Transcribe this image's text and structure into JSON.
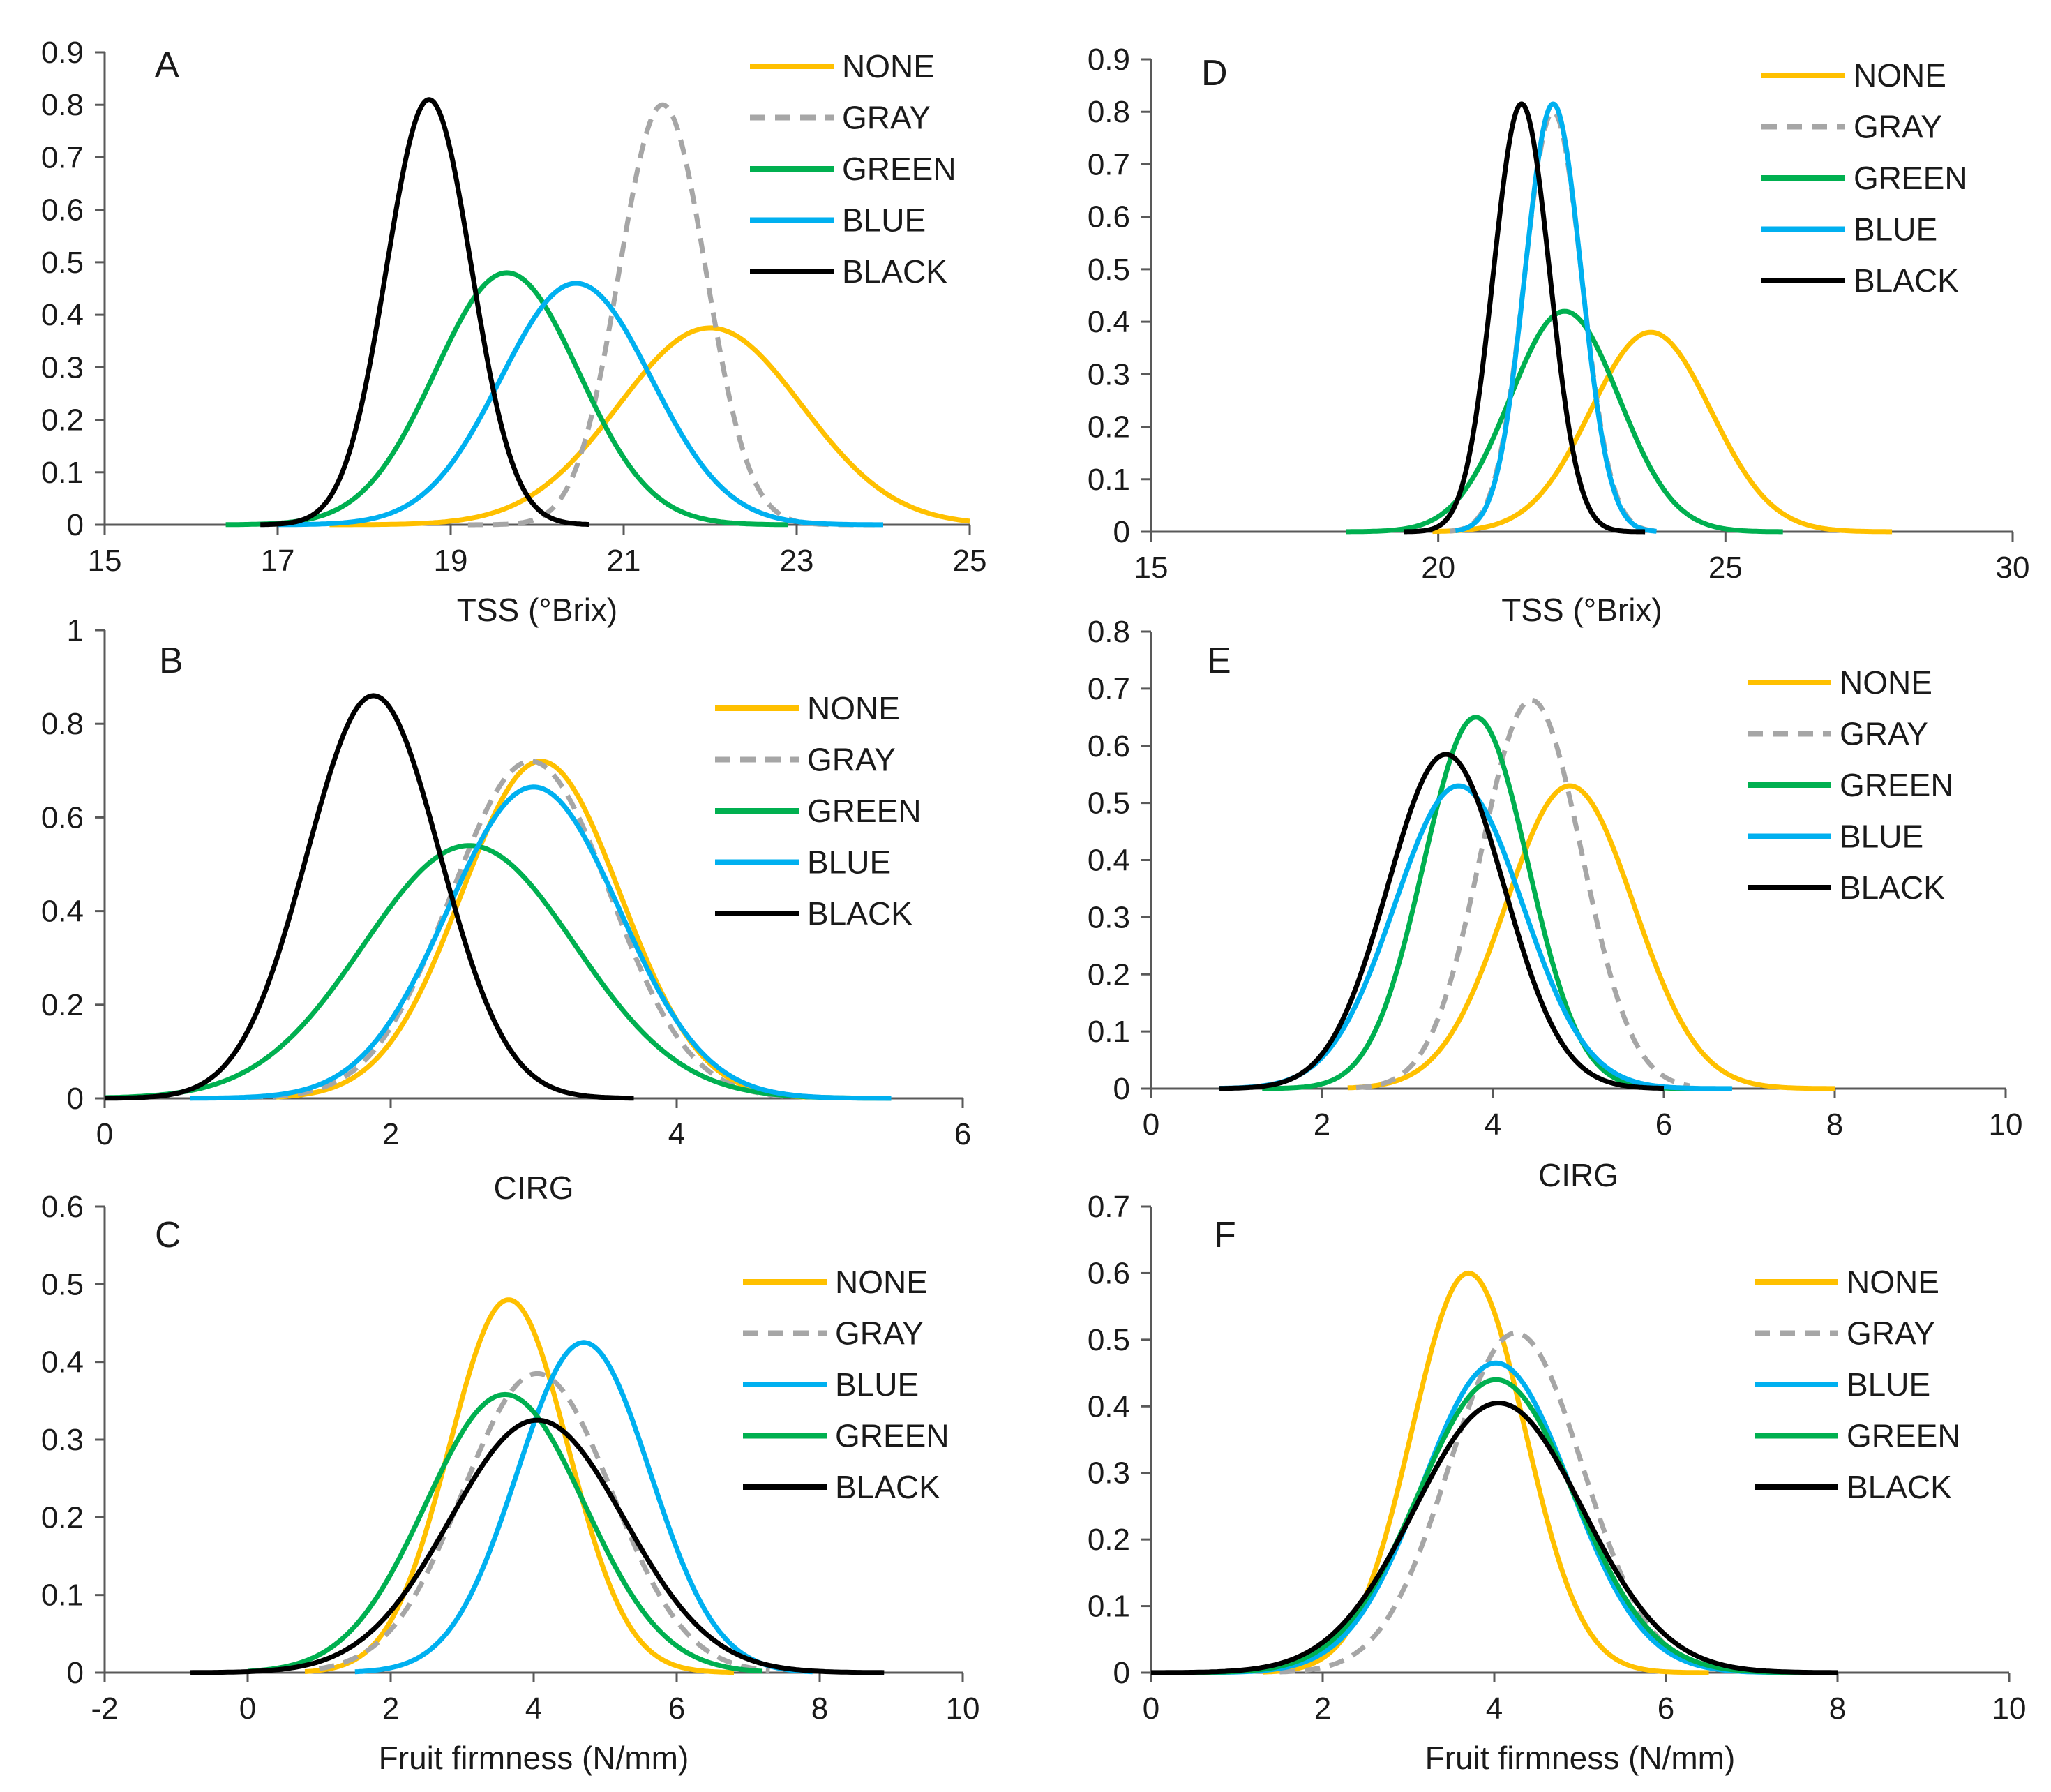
{
  "colors": {
    "NONE": "#FFC000",
    "GRAY": "#A6A6A6",
    "GREEN": "#00B050",
    "BLUE": "#00B0F0",
    "BLACK": "#000000"
  },
  "chart_data": [
    {
      "id": "A",
      "type": "line",
      "subtype": "normal-distribution",
      "title": "A",
      "xlabel": "TSS (°Brix)",
      "ylabel": "",
      "xlim": [
        15,
        25
      ],
      "ylim": [
        0,
        0.9
      ],
      "xticks": [
        15,
        17,
        19,
        21,
        23,
        25
      ],
      "yticks": [
        0,
        0.1,
        0.2,
        0.3,
        0.4,
        0.5,
        0.6,
        0.7,
        0.8,
        0.9
      ],
      "ytick_labels": [
        "0",
        "0.1",
        "0.2",
        "0.3",
        "0.4",
        "0.5",
        "0.6",
        "0.7",
        "0.8",
        "0.9"
      ],
      "legend_position": "top-right",
      "series": [
        {
          "name": "NONE",
          "mean": 22.0,
          "sd": 1.06,
          "peak": 0.375,
          "x_range": [
            17.6,
            25.0
          ],
          "dashed": false
        },
        {
          "name": "GRAY",
          "mean": 21.45,
          "sd": 0.5,
          "peak": 0.8,
          "x_range": [
            19.2,
            23.9
          ],
          "dashed": true
        },
        {
          "name": "GREEN",
          "mean": 19.65,
          "sd": 0.83,
          "peak": 0.48,
          "x_range": [
            16.4,
            22.9
          ],
          "dashed": false
        },
        {
          "name": "BLUE",
          "mean": 20.45,
          "sd": 0.87,
          "peak": 0.46,
          "x_range": [
            17.0,
            24.0
          ],
          "dashed": false
        },
        {
          "name": "BLACK",
          "mean": 18.75,
          "sd": 0.49,
          "peak": 0.81,
          "x_range": [
            16.8,
            20.6
          ],
          "dashed": false
        }
      ]
    },
    {
      "id": "B",
      "type": "line",
      "subtype": "normal-distribution",
      "title": "B",
      "xlabel": "CIRG",
      "ylabel": "",
      "xlim": [
        0,
        6
      ],
      "ylim": [
        0,
        1
      ],
      "xticks": [
        0,
        2,
        4,
        6
      ],
      "yticks": [
        0,
        0.2,
        0.4,
        0.6,
        0.8,
        1
      ],
      "ytick_labels": [
        "0",
        "0.2",
        "0.4",
        "0.6",
        "0.8",
        "1"
      ],
      "legend_position": "top-right",
      "series": [
        {
          "name": "NONE",
          "mean": 3.05,
          "sd": 0.555,
          "peak": 0.72,
          "x_range": [
            1.2,
            4.9
          ],
          "dashed": false
        },
        {
          "name": "GRAY",
          "mean": 2.98,
          "sd": 0.555,
          "peak": 0.72,
          "x_range": [
            1.0,
            4.8
          ],
          "dashed": true
        },
        {
          "name": "GREEN",
          "mean": 2.55,
          "sd": 0.74,
          "peak": 0.54,
          "x_range": [
            0.0,
            5.5
          ],
          "dashed": false
        },
        {
          "name": "BLUE",
          "mean": 3.0,
          "sd": 0.6,
          "peak": 0.665,
          "x_range": [
            0.6,
            5.5
          ],
          "dashed": false
        },
        {
          "name": "BLACK",
          "mean": 1.88,
          "sd": 0.465,
          "peak": 0.86,
          "x_range": [
            0.0,
            3.7
          ],
          "dashed": false
        }
      ]
    },
    {
      "id": "C",
      "type": "line",
      "subtype": "normal-distribution",
      "title": "C",
      "xlabel": "Fruit firmness (N/mm)",
      "ylabel": "",
      "xlim": [
        -2,
        10
      ],
      "ylim": [
        0,
        0.6
      ],
      "xticks": [
        -2,
        0,
        2,
        4,
        6,
        8,
        10
      ],
      "yticks": [
        0,
        0.1,
        0.2,
        0.3,
        0.4,
        0.5,
        0.6
      ],
      "ytick_labels": [
        "0",
        "0.1",
        "0.2",
        "0.3",
        "0.4",
        "0.5",
        "0.6"
      ],
      "legend_position": "top-right",
      "series": [
        {
          "name": "NONE",
          "mean": 3.65,
          "sd": 0.83,
          "peak": 0.48,
          "x_range": [
            0.8,
            6.8
          ],
          "dashed": false
        },
        {
          "name": "GRAY",
          "mean": 4.05,
          "sd": 1.04,
          "peak": 0.385,
          "x_range": [
            1.0,
            7.3
          ],
          "dashed": true
        },
        {
          "name": "BLUE",
          "mean": 4.7,
          "sd": 0.93,
          "peak": 0.425,
          "x_range": [
            1.5,
            7.9
          ],
          "dashed": false
        },
        {
          "name": "GREEN",
          "mean": 3.6,
          "sd": 1.11,
          "peak": 0.358,
          "x_range": [
            0.0,
            7.2
          ],
          "dashed": false
        },
        {
          "name": "BLACK",
          "mean": 4.05,
          "sd": 1.22,
          "peak": 0.325,
          "x_range": [
            -0.8,
            8.9
          ],
          "dashed": false
        }
      ]
    },
    {
      "id": "D",
      "type": "line",
      "subtype": "normal-distribution",
      "title": "D",
      "xlabel": "TSS (°Brix)",
      "ylabel": "",
      "xlim": [
        15,
        30
      ],
      "ylim": [
        0,
        0.9
      ],
      "xticks": [
        15,
        20,
        25,
        30
      ],
      "yticks": [
        0,
        0.1,
        0.2,
        0.3,
        0.4,
        0.5,
        0.6,
        0.7,
        0.8,
        0.9
      ],
      "ytick_labels": [
        "0",
        "0.1",
        "0.2",
        "0.3",
        "0.4",
        "0.5",
        "0.6",
        "0.7",
        "0.8",
        "0.9"
      ],
      "legend_position": "top-right",
      "series": [
        {
          "name": "NONE",
          "mean": 23.7,
          "sd": 1.05,
          "peak": 0.38,
          "x_range": [
            19.9,
            27.9
          ],
          "dashed": false
        },
        {
          "name": "GRAY",
          "mean": 22.0,
          "sd": 0.5,
          "peak": 0.8,
          "x_range": [
            20.2,
            23.8
          ],
          "dashed": true
        },
        {
          "name": "GREEN",
          "mean": 22.2,
          "sd": 0.95,
          "peak": 0.42,
          "x_range": [
            18.4,
            26.0
          ],
          "dashed": false
        },
        {
          "name": "BLUE",
          "mean": 22.0,
          "sd": 0.49,
          "peak": 0.815,
          "x_range": [
            20.3,
            23.8
          ],
          "dashed": false
        },
        {
          "name": "BLACK",
          "mean": 21.45,
          "sd": 0.49,
          "peak": 0.815,
          "x_range": [
            19.4,
            23.6
          ],
          "dashed": false
        }
      ]
    },
    {
      "id": "E",
      "type": "line",
      "subtype": "normal-distribution",
      "title": "E",
      "xlabel": "CIRG",
      "ylabel": "",
      "xlim": [
        0,
        10
      ],
      "ylim": [
        0,
        0.8
      ],
      "xticks": [
        0,
        2,
        4,
        6,
        8,
        10
      ],
      "yticks": [
        0,
        0.1,
        0.2,
        0.3,
        0.4,
        0.5,
        0.6,
        0.7,
        0.8
      ],
      "ytick_labels": [
        "0",
        "0.1",
        "0.2",
        "0.3",
        "0.4",
        "0.5",
        "0.6",
        "0.7",
        "0.8"
      ],
      "legend_position": "top-right",
      "series": [
        {
          "name": "NONE",
          "mean": 4.9,
          "sd": 0.75,
          "peak": 0.53,
          "x_range": [
            2.3,
            8.0
          ],
          "dashed": false
        },
        {
          "name": "GRAY",
          "mean": 4.45,
          "sd": 0.59,
          "peak": 0.68,
          "x_range": [
            2.4,
            6.3
          ],
          "dashed": true
        },
        {
          "name": "GREEN",
          "mean": 3.8,
          "sd": 0.61,
          "peak": 0.65,
          "x_range": [
            1.3,
            6.4
          ],
          "dashed": false
        },
        {
          "name": "BLUE",
          "mean": 3.6,
          "sd": 0.75,
          "peak": 0.53,
          "x_range": [
            0.8,
            6.8
          ],
          "dashed": false
        },
        {
          "name": "BLACK",
          "mean": 3.45,
          "sd": 0.68,
          "peak": 0.585,
          "x_range": [
            0.8,
            6.0
          ],
          "dashed": false
        }
      ]
    },
    {
      "id": "F",
      "type": "line",
      "subtype": "normal-distribution",
      "title": "F",
      "xlabel": "Fruit firmness (N/mm)",
      "ylabel": "",
      "xlim": [
        0,
        10
      ],
      "ylim": [
        0,
        0.7
      ],
      "xticks": [
        0,
        2,
        4,
        6,
        8,
        10
      ],
      "yticks": [
        0,
        0.1,
        0.2,
        0.3,
        0.4,
        0.5,
        0.6,
        0.7
      ],
      "ytick_labels": [
        "0",
        "0.1",
        "0.2",
        "0.3",
        "0.4",
        "0.5",
        "0.6",
        "0.7"
      ],
      "legend_position": "top-right",
      "series": [
        {
          "name": "NONE",
          "mean": 3.7,
          "sd": 0.66,
          "peak": 0.6,
          "x_range": [
            1.3,
            6.5
          ],
          "dashed": false
        },
        {
          "name": "GRAY",
          "mean": 4.25,
          "sd": 0.78,
          "peak": 0.51,
          "x_range": [
            1.5,
            7.0
          ],
          "dashed": true
        },
        {
          "name": "BLUE",
          "mean": 4.02,
          "sd": 0.86,
          "peak": 0.465,
          "x_range": [
            0.7,
            7.5
          ],
          "dashed": false
        },
        {
          "name": "GREEN",
          "mean": 4.02,
          "sd": 0.91,
          "peak": 0.44,
          "x_range": [
            0.5,
            7.7
          ],
          "dashed": false
        },
        {
          "name": "BLACK",
          "mean": 4.05,
          "sd": 0.98,
          "peak": 0.405,
          "x_range": [
            0.0,
            8.0
          ],
          "dashed": false
        }
      ]
    }
  ]
}
